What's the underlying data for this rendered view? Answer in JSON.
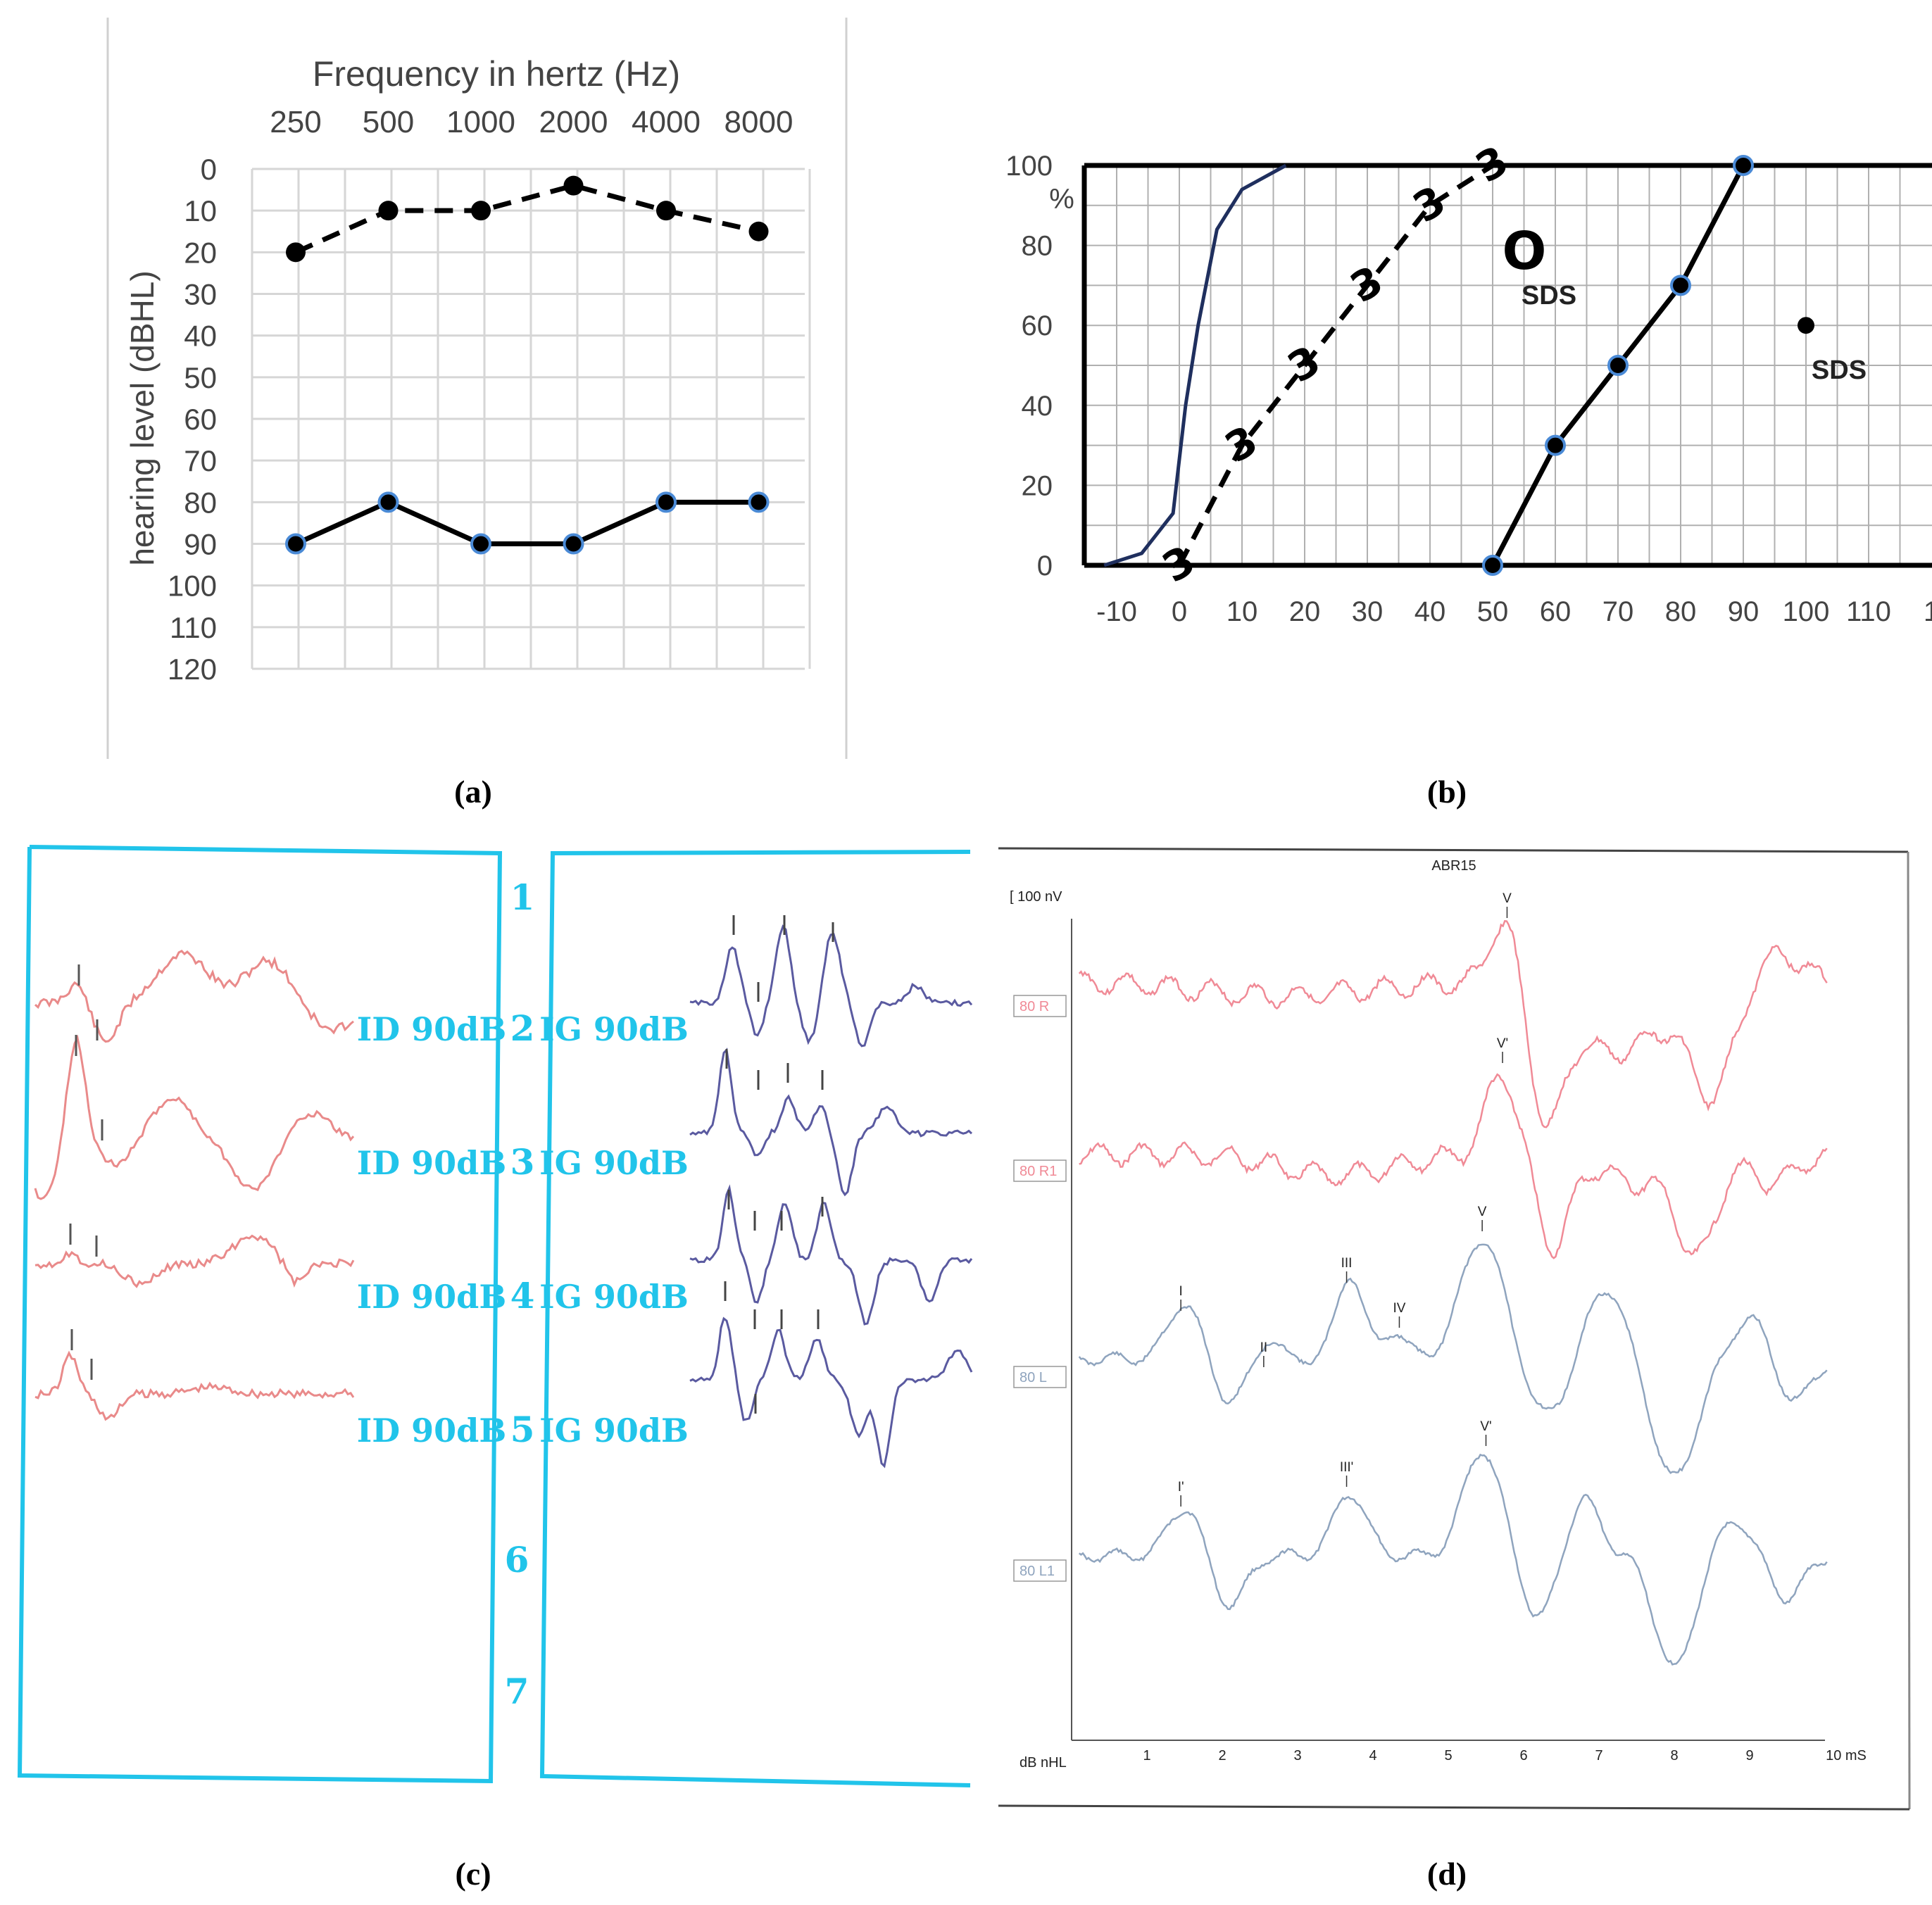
{
  "captions": [
    "(a)",
    "(b)",
    "(c)",
    "(d)"
  ],
  "chart_data": [
    {
      "type": "line",
      "panel": "a",
      "title": "Frequency in hertz (Hz)",
      "ylabel": "hearing level (dBHL)",
      "categories": [
        "250",
        "500",
        "1000",
        "2000",
        "4000",
        "8000"
      ],
      "y_ticks": [
        "0",
        "10",
        "20",
        "30",
        "40",
        "50",
        "60",
        "70",
        "80",
        "90",
        "100",
        "110",
        "120"
      ],
      "ylim": [
        0,
        120
      ],
      "y_inverted": true,
      "grid": true,
      "series": [
        {
          "style": "dashed",
          "marker": "filled-black",
          "values": [
            20,
            10,
            10,
            4,
            10,
            15
          ]
        },
        {
          "style": "solid",
          "marker": "blue-ring",
          "values": [
            90,
            80,
            90,
            90,
            80,
            80
          ]
        }
      ]
    },
    {
      "type": "line",
      "panel": "b",
      "y_unit": "%",
      "x_ticks": [
        "-10",
        "0",
        "10",
        "20",
        "30",
        "40",
        "50",
        "60",
        "70",
        "80",
        "90",
        "100",
        "110",
        "1"
      ],
      "y_ticks": [
        "0",
        "20",
        "40",
        "60",
        "80",
        "100"
      ],
      "xlim": [
        -15,
        118
      ],
      "ylim": [
        0,
        100
      ],
      "grid": true,
      "series": [
        {
          "style": "thin-navy",
          "x": [
            -12,
            -6,
            -1,
            1,
            3,
            6,
            10,
            17
          ],
          "y": [
            0,
            3,
            13,
            40,
            60,
            84,
            94,
            100
          ]
        },
        {
          "style": "dashed-3",
          "x": [
            0,
            10,
            20,
            30,
            40,
            50
          ],
          "y": [
            0,
            30,
            50,
            70,
            90,
            100
          ]
        },
        {
          "style": "solid-dots",
          "x": [
            50,
            60,
            70,
            80,
            90
          ],
          "y": [
            0,
            30,
            50,
            70,
            100
          ]
        }
      ],
      "annotations": [
        {
          "text": "SDS",
          "marker": "O",
          "x": 56,
          "y": 80
        },
        {
          "text": "SDS",
          "marker": "dot",
          "x": 100,
          "y": 60
        }
      ]
    },
    {
      "type": "line",
      "panel": "c",
      "right_labels": [
        "ID 90dB",
        "ID 90dB",
        "ID 90dB",
        "ID 90dB"
      ],
      "left_labels": [
        "IG 90dB",
        "IG 90dB",
        "IG 90dB",
        "IG 90dB"
      ],
      "row_numbers": [
        "1",
        "2",
        "3",
        "4",
        "5",
        "6",
        "7"
      ],
      "colors": {
        "right": "#e98a8a",
        "left": "#5a5aa0",
        "frame": "#21c4ea"
      }
    },
    {
      "type": "line",
      "panel": "d",
      "title": "ABR15",
      "scale_label": "[ 100 nV",
      "x_label_left": "dB nHL",
      "x_ticks": [
        "1",
        "2",
        "3",
        "4",
        "5",
        "6",
        "7",
        "8",
        "9",
        "10 mS"
      ],
      "trace_labels": [
        "80 R",
        "80 R1",
        "80 L",
        "80 L1"
      ],
      "peak_labels": {
        "trace1": [
          "V"
        ],
        "trace2": [
          "V'"
        ],
        "trace3": [
          "I",
          "II",
          "III",
          "IV",
          "V"
        ],
        "trace4": [
          "I'",
          "III'",
          "V'"
        ]
      },
      "colors": {
        "right": "#f08a96",
        "left": "#8fa4be"
      }
    }
  ]
}
